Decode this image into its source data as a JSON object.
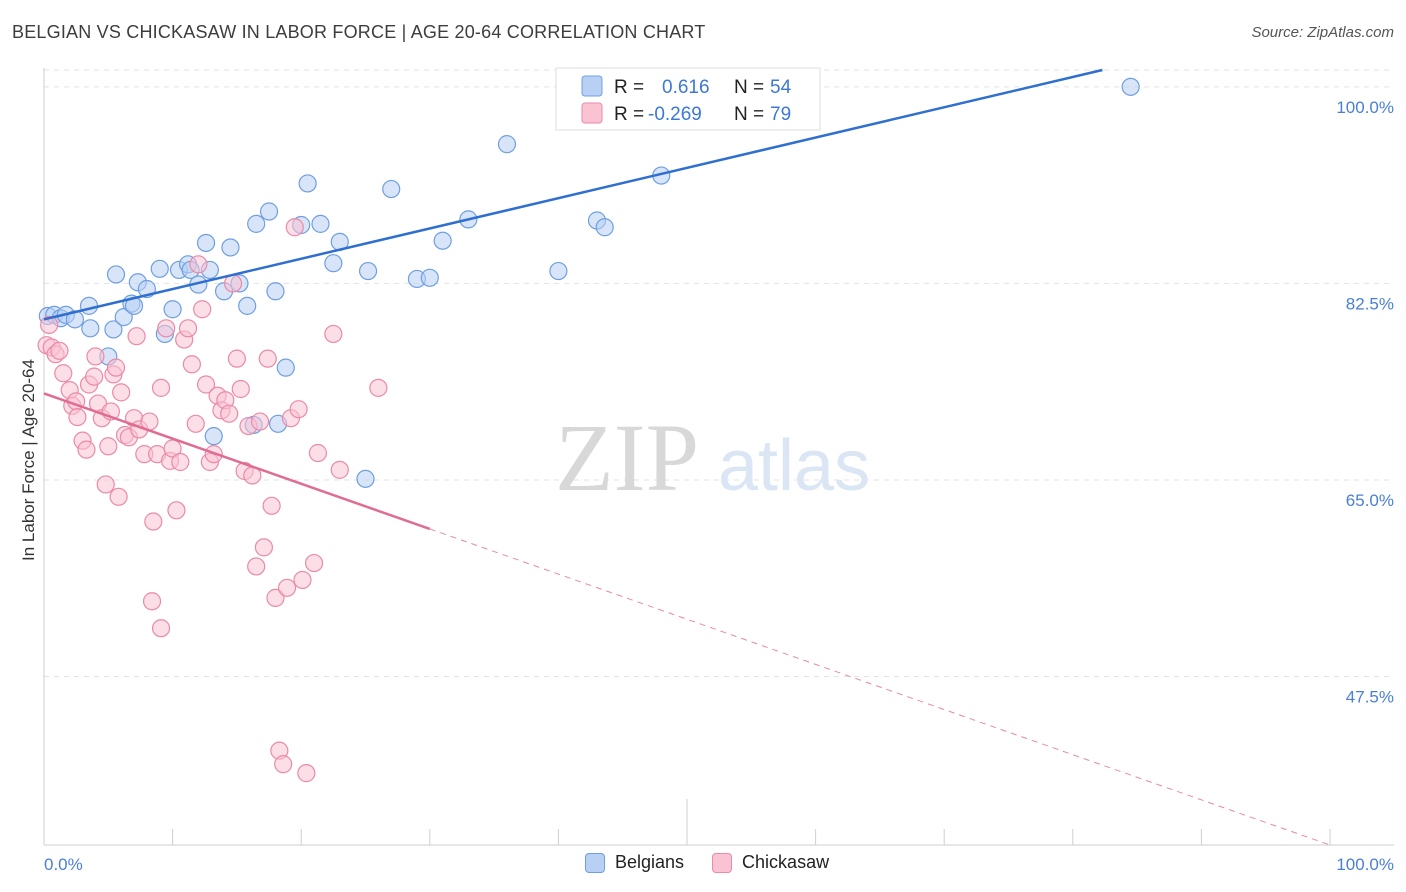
{
  "title": "BELGIAN VS CHICKASAW IN LABOR FORCE | AGE 20-64 CORRELATION CHART",
  "source": "Source: ZipAtlas.com",
  "watermark": {
    "zip": "ZIP",
    "atlas": "atlas"
  },
  "legend": {
    "r_label": "R =",
    "n_label": "N =",
    "rows": [
      {
        "r": "0.616",
        "n": "54",
        "fill": "#b8d0f4",
        "stroke": "#6f9fe0"
      },
      {
        "r": "-0.269",
        "n": "79",
        "fill": "#f9c3d3",
        "stroke": "#eb8aa8"
      }
    ]
  },
  "bottom_legend": [
    {
      "label": "Belgians",
      "fill": "#b8d0f4",
      "stroke": "#6f9fe0"
    },
    {
      "label": "Chickasaw",
      "fill": "#f9c3d3",
      "stroke": "#eb8aa8"
    }
  ],
  "chart_data": {
    "type": "scatter",
    "ylabel": "In Labor Force | Age 20-64",
    "xlim": [
      0,
      100
    ],
    "ylim": [
      32.5,
      101.5
    ],
    "x_tick_labels": [
      "0.0%",
      "100.0%"
    ],
    "y_ticks": [
      {
        "value": 100.0,
        "label": "100.0%"
      },
      {
        "value": 82.5,
        "label": "82.5%"
      },
      {
        "value": 65.0,
        "label": "65.0%"
      },
      {
        "value": 47.5,
        "label": "47.5%"
      }
    ],
    "grid": "horizontal dashed",
    "series": [
      {
        "name": "Belgians",
        "color": "#6f9fe0",
        "fill": "#b8d0f4",
        "line_color": "#2f6fd0",
        "trend": {
          "x0": 0,
          "y0": 79.3,
          "x1": 82.3,
          "y1": 101.5,
          "dashed_from": 82.3
        },
        "points": [
          [
            0.3,
            79.6
          ],
          [
            0.8,
            79.7
          ],
          [
            1.3,
            79.4
          ],
          [
            1.7,
            79.7
          ],
          [
            2.4,
            79.3
          ],
          [
            3.5,
            80.5
          ],
          [
            3.6,
            78.5
          ],
          [
            5.0,
            76.0
          ],
          [
            5.4,
            78.4
          ],
          [
            5.6,
            83.3
          ],
          [
            6.2,
            79.5
          ],
          [
            6.8,
            80.7
          ],
          [
            7.3,
            82.6
          ],
          [
            8.0,
            82.0
          ],
          [
            7.0,
            80.5
          ],
          [
            9.0,
            83.8
          ],
          [
            9.4,
            78.0
          ],
          [
            10.0,
            80.2
          ],
          [
            10.5,
            83.7
          ],
          [
            11.2,
            84.2
          ],
          [
            11.4,
            83.7
          ],
          [
            12.0,
            82.4
          ],
          [
            12.6,
            86.1
          ],
          [
            12.9,
            83.7
          ],
          [
            13.2,
            68.9
          ],
          [
            14.0,
            81.8
          ],
          [
            14.5,
            85.7
          ],
          [
            15.2,
            82.5
          ],
          [
            15.8,
            80.5
          ],
          [
            16.3,
            69.9
          ],
          [
            16.5,
            87.8
          ],
          [
            17.5,
            88.9
          ],
          [
            18.0,
            81.8
          ],
          [
            18.2,
            70.0
          ],
          [
            18.8,
            75.0
          ],
          [
            20.0,
            87.7
          ],
          [
            20.5,
            91.4
          ],
          [
            21.5,
            87.8
          ],
          [
            22.5,
            84.3
          ],
          [
            23.0,
            86.2
          ],
          [
            25.2,
            83.6
          ],
          [
            27.0,
            90.9
          ],
          [
            29.0,
            82.9
          ],
          [
            30.0,
            83.0
          ],
          [
            31.0,
            86.3
          ],
          [
            33.0,
            88.2
          ],
          [
            36.0,
            94.9
          ],
          [
            40.0,
            83.6
          ],
          [
            43.0,
            88.1
          ],
          [
            43.6,
            87.5
          ],
          [
            48.0,
            92.1
          ],
          [
            48.5,
            99.6
          ],
          [
            84.5,
            100.0
          ],
          [
            25.0,
            65.1
          ]
        ]
      },
      {
        "name": "Chickasaw",
        "color": "#eb8aa8",
        "fill": "#f9c3d3",
        "line_color": "#e06c93",
        "trend": {
          "x0": 0,
          "y0": 72.7,
          "x1": 100,
          "y1": 32.5,
          "solid_until": 30.0
        },
        "points": [
          [
            0.2,
            77.0
          ],
          [
            0.4,
            78.8
          ],
          [
            0.6,
            76.8
          ],
          [
            0.9,
            76.2
          ],
          [
            1.2,
            76.5
          ],
          [
            1.5,
            74.5
          ],
          [
            2.0,
            73.0
          ],
          [
            2.2,
            71.6
          ],
          [
            2.5,
            72.0
          ],
          [
            2.6,
            70.6
          ],
          [
            3.0,
            68.5
          ],
          [
            3.3,
            67.7
          ],
          [
            3.5,
            73.5
          ],
          [
            3.9,
            74.2
          ],
          [
            4.0,
            76.0
          ],
          [
            4.2,
            71.8
          ],
          [
            4.5,
            70.5
          ],
          [
            5.0,
            68.0
          ],
          [
            5.2,
            71.1
          ],
          [
            5.4,
            74.4
          ],
          [
            5.6,
            75.0
          ],
          [
            6.0,
            72.8
          ],
          [
            6.3,
            69.0
          ],
          [
            6.6,
            68.8
          ],
          [
            7.0,
            70.5
          ],
          [
            7.2,
            77.8
          ],
          [
            7.4,
            69.5
          ],
          [
            7.8,
            67.3
          ],
          [
            8.2,
            70.2
          ],
          [
            8.5,
            61.3
          ],
          [
            8.8,
            67.3
          ],
          [
            9.1,
            73.2
          ],
          [
            9.5,
            78.5
          ],
          [
            9.8,
            66.7
          ],
          [
            10.0,
            67.8
          ],
          [
            10.3,
            62.3
          ],
          [
            10.6,
            66.6
          ],
          [
            10.9,
            77.5
          ],
          [
            11.2,
            78.5
          ],
          [
            11.5,
            75.3
          ],
          [
            11.8,
            70.0
          ],
          [
            12.0,
            84.2
          ],
          [
            12.3,
            80.2
          ],
          [
            12.6,
            73.5
          ],
          [
            12.9,
            66.6
          ],
          [
            13.2,
            67.3
          ],
          [
            13.5,
            72.5
          ],
          [
            13.8,
            71.2
          ],
          [
            14.1,
            72.1
          ],
          [
            14.4,
            70.9
          ],
          [
            14.7,
            82.5
          ],
          [
            15.0,
            75.8
          ],
          [
            15.3,
            73.1
          ],
          [
            15.6,
            65.8
          ],
          [
            15.9,
            69.8
          ],
          [
            16.2,
            65.4
          ],
          [
            16.5,
            57.3
          ],
          [
            16.8,
            70.2
          ],
          [
            17.1,
            59.0
          ],
          [
            17.4,
            75.8
          ],
          [
            17.7,
            62.7
          ],
          [
            18.0,
            54.5
          ],
          [
            18.3,
            40.9
          ],
          [
            18.6,
            39.7
          ],
          [
            18.9,
            55.4
          ],
          [
            19.2,
            70.5
          ],
          [
            19.5,
            87.5
          ],
          [
            19.8,
            71.3
          ],
          [
            20.1,
            56.1
          ],
          [
            20.4,
            38.9
          ],
          [
            21.0,
            57.6
          ],
          [
            21.3,
            67.4
          ],
          [
            22.5,
            78.0
          ],
          [
            23.0,
            65.9
          ],
          [
            26.0,
            73.2
          ],
          [
            4.8,
            64.6
          ],
          [
            8.4,
            54.2
          ],
          [
            9.1,
            51.8
          ],
          [
            5.8,
            63.5
          ]
        ]
      }
    ]
  }
}
